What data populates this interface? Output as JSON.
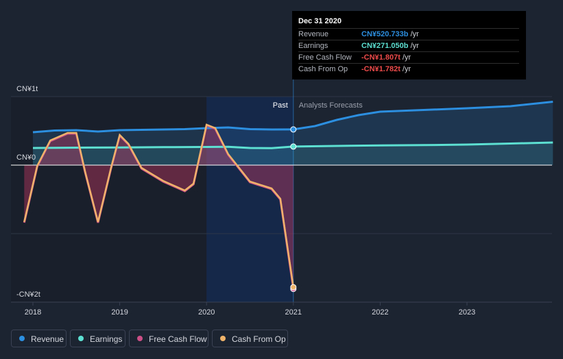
{
  "chart_data": {
    "type": "line",
    "y_unit_labels": [
      "CN¥1t",
      "CN¥0",
      "-CN¥2t"
    ],
    "ylim": [
      -2000,
      1000
    ],
    "x_ticks": [
      "2018",
      "2019",
      "2020",
      "2021",
      "2022",
      "2023"
    ],
    "xlim": [
      2017.9,
      2023.99
    ],
    "divider_labels": {
      "past": "Past",
      "forecast": "Analysts Forecasts"
    },
    "divider_x": 2021.0,
    "series": [
      {
        "name": "Revenue",
        "color": "#2d8fe0",
        "points": [
          [
            2018,
            480
          ],
          [
            2018.25,
            505
          ],
          [
            2018.5,
            510
          ],
          [
            2018.75,
            490
          ],
          [
            2019,
            510
          ],
          [
            2019.25,
            515
          ],
          [
            2019.5,
            520
          ],
          [
            2019.75,
            525
          ],
          [
            2020,
            540
          ],
          [
            2020.25,
            550
          ],
          [
            2020.5,
            525
          ],
          [
            2020.75,
            520
          ],
          [
            2021,
            521
          ]
        ],
        "forecast": [
          [
            2021,
            521
          ],
          [
            2021.25,
            570
          ],
          [
            2021.5,
            660
          ],
          [
            2021.75,
            730
          ],
          [
            2022,
            780
          ],
          [
            2022.5,
            805
          ],
          [
            2023,
            830
          ],
          [
            2023.5,
            860
          ],
          [
            2023.99,
            925
          ]
        ]
      },
      {
        "name": "Earnings",
        "color": "#5de0d2",
        "points": [
          [
            2018,
            250
          ],
          [
            2018.5,
            255
          ],
          [
            2019,
            258
          ],
          [
            2019.5,
            262
          ],
          [
            2020,
            265
          ],
          [
            2020.25,
            268
          ],
          [
            2020.5,
            250
          ],
          [
            2020.75,
            248
          ],
          [
            2021,
            271
          ]
        ],
        "forecast": [
          [
            2021,
            271
          ],
          [
            2021.5,
            280
          ],
          [
            2022,
            288
          ],
          [
            2022.5,
            292
          ],
          [
            2023,
            300
          ],
          [
            2023.5,
            315
          ],
          [
            2023.99,
            330
          ]
        ]
      },
      {
        "name": "Free Cash Flow",
        "color": "#cc4f87",
        "points": [
          [
            2017.9,
            -840
          ],
          [
            2018.05,
            -20
          ],
          [
            2018.2,
            350
          ],
          [
            2018.4,
            460
          ],
          [
            2018.5,
            460
          ],
          [
            2018.6,
            -100
          ],
          [
            2018.75,
            -840
          ],
          [
            2018.9,
            -50
          ],
          [
            2019,
            430
          ],
          [
            2019.1,
            300
          ],
          [
            2019.25,
            -50
          ],
          [
            2019.5,
            -240
          ],
          [
            2019.75,
            -380
          ],
          [
            2019.85,
            -280
          ],
          [
            2020,
            580
          ],
          [
            2020.1,
            530
          ],
          [
            2020.25,
            150
          ],
          [
            2020.5,
            -250
          ],
          [
            2020.75,
            -350
          ],
          [
            2020.85,
            -500
          ],
          [
            2021,
            -1807
          ]
        ]
      },
      {
        "name": "Cash From Op",
        "color": "#f0b36a",
        "points": [
          [
            2017.9,
            -830
          ],
          [
            2018.05,
            -10
          ],
          [
            2018.2,
            360
          ],
          [
            2018.4,
            470
          ],
          [
            2018.5,
            470
          ],
          [
            2018.6,
            -90
          ],
          [
            2018.75,
            -830
          ],
          [
            2018.9,
            -40
          ],
          [
            2019,
            440
          ],
          [
            2019.1,
            310
          ],
          [
            2019.25,
            -40
          ],
          [
            2019.5,
            -230
          ],
          [
            2019.75,
            -370
          ],
          [
            2019.85,
            -270
          ],
          [
            2020,
            590
          ],
          [
            2020.1,
            540
          ],
          [
            2020.25,
            160
          ],
          [
            2020.5,
            -240
          ],
          [
            2020.75,
            -340
          ],
          [
            2020.85,
            -490
          ],
          [
            2021,
            -1782
          ]
        ]
      }
    ]
  },
  "tooltip": {
    "date": "Dec 31 2020",
    "rows": [
      {
        "label": "Revenue",
        "value": "CN¥520.733b",
        "unit": "/yr",
        "color": "#2d8fe0"
      },
      {
        "label": "Earnings",
        "value": "CN¥271.050b",
        "unit": "/yr",
        "color": "#5de0d2"
      },
      {
        "label": "Free Cash Flow",
        "value": "-CN¥1.807t",
        "unit": "/yr",
        "color": "#ef4b4b"
      },
      {
        "label": "Cash From Op",
        "value": "-CN¥1.782t",
        "unit": "/yr",
        "color": "#ef4b4b"
      }
    ]
  },
  "legend": [
    {
      "label": "Revenue",
      "color": "#2d8fe0"
    },
    {
      "label": "Earnings",
      "color": "#5de0d2"
    },
    {
      "label": "Free Cash Flow",
      "color": "#cc4f87"
    },
    {
      "label": "Cash From Op",
      "color": "#f0b36a"
    }
  ]
}
